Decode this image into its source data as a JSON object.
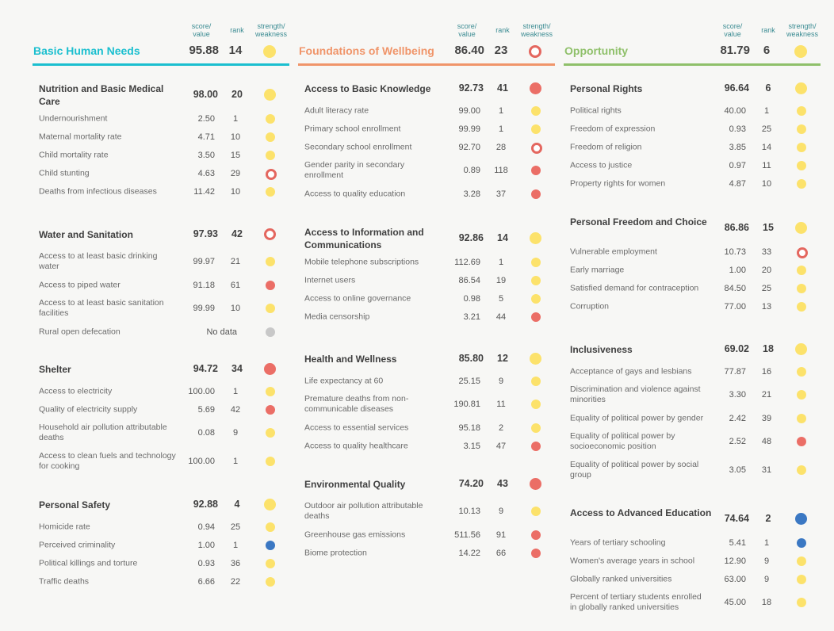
{
  "colors": {
    "strength": "#3b78c3",
    "neutral": "#fce26b",
    "weakness": "#eb6e66",
    "no_data": "#c8c8c8",
    "ring": "#e4675f"
  },
  "labels": {
    "score_value": "score/\nvalue",
    "rank": "rank",
    "strength_weakness": "strength/\nweakness"
  },
  "columns": [
    {
      "title": "Basic Human Needs",
      "score": "95.88",
      "rank": "14",
      "status": "neutral",
      "accent": "#1bbfcf",
      "components": [
        {
          "name": "Nutrition and Basic Medical Care",
          "score": "98.00",
          "rank": "20",
          "status": "neutral",
          "indicators": [
            {
              "name": "Undernourishment",
              "value": "2.50",
              "rank": "1",
              "status": "neutral"
            },
            {
              "name": "Maternal mortality rate",
              "value": "4.71",
              "rank": "10",
              "status": "neutral"
            },
            {
              "name": "Child mortality rate",
              "value": "3.50",
              "rank": "15",
              "status": "neutral"
            },
            {
              "name": "Child stunting",
              "value": "4.63",
              "rank": "29",
              "status": "ring"
            },
            {
              "name": "Deaths from infectious diseases",
              "value": "11.42",
              "rank": "10",
              "status": "neutral"
            }
          ]
        },
        {
          "name": "Water and Sanitation",
          "score": "97.93",
          "rank": "42",
          "status": "ring",
          "indicators": [
            {
              "name": "Access to at least basic drinking water",
              "value": "99.97",
              "rank": "21",
              "status": "neutral"
            },
            {
              "name": "Access to piped water",
              "value": "91.18",
              "rank": "61",
              "status": "weakness"
            },
            {
              "name": "Access to at least basic sanitation facilities",
              "value": "99.99",
              "rank": "10",
              "status": "neutral"
            },
            {
              "name": "Rural open defecation",
              "value": "No data",
              "rank": "",
              "status": "no_data"
            }
          ]
        },
        {
          "name": "Shelter",
          "score": "94.72",
          "rank": "34",
          "status": "weakness",
          "indicators": [
            {
              "name": "Access to electricity",
              "value": "100.00",
              "rank": "1",
              "status": "neutral"
            },
            {
              "name": "Quality of electricity supply",
              "value": "5.69",
              "rank": "42",
              "status": "weakness"
            },
            {
              "name": "Household air pollution attributable deaths",
              "value": "0.08",
              "rank": "9",
              "status": "neutral"
            },
            {
              "name": "Access to clean fuels and technology for cooking",
              "value": "100.00",
              "rank": "1",
              "status": "neutral"
            }
          ]
        },
        {
          "name": "Personal Safety",
          "score": "92.88",
          "rank": "4",
          "status": "neutral",
          "indicators": [
            {
              "name": "Homicide rate",
              "value": "0.94",
              "rank": "25",
              "status": "neutral"
            },
            {
              "name": "Perceived criminality",
              "value": "1.00",
              "rank": "1",
              "status": "strength"
            },
            {
              "name": "Political killings and torture",
              "value": "0.93",
              "rank": "36",
              "status": "neutral"
            },
            {
              "name": "Traffic deaths",
              "value": "6.66",
              "rank": "22",
              "status": "neutral"
            }
          ]
        }
      ]
    },
    {
      "title": "Foundations of Wellbeing",
      "score": "86.40",
      "rank": "23",
      "status": "ring",
      "accent": "#f0956a",
      "components": [
        {
          "name": "Access to Basic Knowledge",
          "score": "92.73",
          "rank": "41",
          "status": "weakness",
          "indicators": [
            {
              "name": "Adult literacy rate",
              "value": "99.00",
              "rank": "1",
              "status": "neutral"
            },
            {
              "name": "Primary school enrollment",
              "value": "99.99",
              "rank": "1",
              "status": "neutral"
            },
            {
              "name": "Secondary school enrollment",
              "value": "92.70",
              "rank": "28",
              "status": "ring"
            },
            {
              "name": "Gender parity in secondary enrollment",
              "value": "0.89",
              "rank": "118",
              "status": "weakness"
            },
            {
              "name": "Access to quality education",
              "value": "3.28",
              "rank": "37",
              "status": "weakness"
            }
          ]
        },
        {
          "name": "Access to Information and Communications",
          "score": "92.86",
          "rank": "14",
          "status": "neutral",
          "indicators": [
            {
              "name": "Mobile telephone subscriptions",
              "value": "112.69",
              "rank": "1",
              "status": "neutral"
            },
            {
              "name": "Internet users",
              "value": "86.54",
              "rank": "19",
              "status": "neutral"
            },
            {
              "name": "Access to online governance",
              "value": "0.98",
              "rank": "5",
              "status": "neutral"
            },
            {
              "name": "Media censorship",
              "value": "3.21",
              "rank": "44",
              "status": "weakness"
            }
          ]
        },
        {
          "name": "Health and Wellness",
          "score": "85.80",
          "rank": "12",
          "status": "neutral",
          "indicators": [
            {
              "name": "Life expectancy at 60",
              "value": "25.15",
              "rank": "9",
              "status": "neutral"
            },
            {
              "name": "Premature deaths from non-communicable diseases",
              "value": "190.81",
              "rank": "11",
              "status": "neutral"
            },
            {
              "name": "Access to essential services",
              "value": "95.18",
              "rank": "2",
              "status": "neutral"
            },
            {
              "name": "Access to quality healthcare",
              "value": "3.15",
              "rank": "47",
              "status": "weakness"
            }
          ]
        },
        {
          "name": "Environmental Quality",
          "score": "74.20",
          "rank": "43",
          "status": "weakness",
          "indicators": [
            {
              "name": "Outdoor air pollution attributable deaths",
              "value": "10.13",
              "rank": "9",
              "status": "neutral"
            },
            {
              "name": "Greenhouse gas emissions",
              "value": "511.56",
              "rank": "91",
              "status": "weakness"
            },
            {
              "name": "Biome protection",
              "value": "14.22",
              "rank": "66",
              "status": "weakness"
            }
          ]
        }
      ]
    },
    {
      "title": "Opportunity",
      "score": "81.79",
      "rank": "6",
      "status": "neutral",
      "accent": "#8fc06a",
      "components": [
        {
          "name": "Personal Rights",
          "score": "96.64",
          "rank": "6",
          "status": "neutral",
          "indicators": [
            {
              "name": "Political rights",
              "value": "40.00",
              "rank": "1",
              "status": "neutral"
            },
            {
              "name": "Freedom of expression",
              "value": "0.93",
              "rank": "25",
              "status": "neutral"
            },
            {
              "name": "Freedom of religion",
              "value": "3.85",
              "rank": "14",
              "status": "neutral"
            },
            {
              "name": "Access to justice",
              "value": "0.97",
              "rank": "11",
              "status": "neutral"
            },
            {
              "name": "Property rights for women",
              "value": "4.87",
              "rank": "10",
              "status": "neutral"
            }
          ]
        },
        {
          "name": "Personal Freedom and Choice",
          "score": "86.86",
          "rank": "15",
          "status": "neutral",
          "indicators": [
            {
              "name": "Vulnerable employment",
              "value": "10.73",
              "rank": "33",
              "status": "ring"
            },
            {
              "name": "Early marriage",
              "value": "1.00",
              "rank": "20",
              "status": "neutral"
            },
            {
              "name": "Satisfied demand for contraception",
              "value": "84.50",
              "rank": "25",
              "status": "neutral"
            },
            {
              "name": "Corruption",
              "value": "77.00",
              "rank": "13",
              "status": "neutral"
            }
          ]
        },
        {
          "name": "Inclusiveness",
          "score": "69.02",
          "rank": "18",
          "status": "neutral",
          "indicators": [
            {
              "name": "Acceptance of gays and lesbians",
              "value": "77.87",
              "rank": "16",
              "status": "neutral"
            },
            {
              "name": "Discrimination and violence against minorities",
              "value": "3.30",
              "rank": "21",
              "status": "neutral"
            },
            {
              "name": "Equality of political power by gender",
              "value": "2.42",
              "rank": "39",
              "status": "neutral"
            },
            {
              "name": "Equality of political power by socioeconomic position",
              "value": "2.52",
              "rank": "48",
              "status": "weakness"
            },
            {
              "name": "Equality of political power by social group",
              "value": "3.05",
              "rank": "31",
              "status": "neutral"
            }
          ]
        },
        {
          "name": "Access to Advanced Education",
          "score": "74.64",
          "rank": "2",
          "status": "strength",
          "indicators": [
            {
              "name": "Years of tertiary schooling",
              "value": "5.41",
              "rank": "1",
              "status": "strength"
            },
            {
              "name": "Women's average years in school",
              "value": "12.90",
              "rank": "9",
              "status": "neutral"
            },
            {
              "name": "Globally ranked universities",
              "value": "63.00",
              "rank": "9",
              "status": "neutral"
            },
            {
              "name": "Percent of tertiary students enrolled in globally ranked universities",
              "value": "45.00",
              "rank": "18",
              "status": "neutral"
            }
          ]
        }
      ]
    }
  ]
}
